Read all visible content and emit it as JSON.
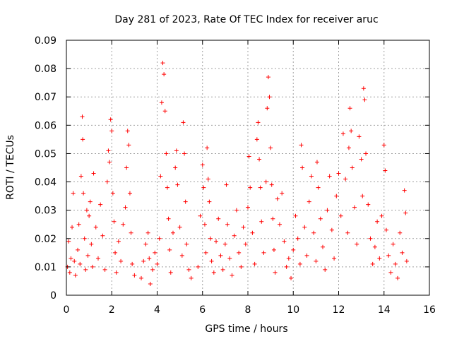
{
  "chart_data": {
    "type": "scatter",
    "title": "Day 281 of 2023, Rate Of TEC Index for receiver aruc",
    "xlabel": "GPS time / hours",
    "ylabel": "ROTI / TECUs",
    "xlim": [
      0,
      16
    ],
    "ylim": [
      0,
      0.09
    ],
    "x_ticks": [
      0,
      2,
      4,
      6,
      8,
      10,
      12,
      14,
      16
    ],
    "y_ticks": [
      0,
      0.01,
      0.02,
      0.03,
      0.04,
      0.05,
      0.06,
      0.07,
      0.08,
      0.09
    ],
    "x_tick_labels": [
      "0",
      "2",
      "4",
      "6",
      "8",
      "10",
      "12",
      "14",
      "16"
    ],
    "y_tick_labels": [
      "0",
      "0.01",
      "0.02",
      "0.03",
      "0.04",
      "0.05",
      "0.06",
      "0.07",
      "0.08",
      "0.09"
    ],
    "grid": true,
    "marker": "+",
    "color": "#ff0000",
    "series": [
      {
        "points": [
          [
            0.05,
            0.01
          ],
          [
            0.1,
            0.019
          ],
          [
            0.15,
            0.008
          ],
          [
            0.2,
            0.013
          ],
          [
            0.25,
            0.024
          ],
          [
            0.3,
            0.036
          ],
          [
            0.35,
            0.012
          ],
          [
            0.4,
            0.007
          ],
          [
            0.5,
            0.016
          ],
          [
            0.55,
            0.025
          ],
          [
            0.6,
            0.011
          ],
          [
            0.65,
            0.042
          ],
          [
            0.7,
            0.063
          ],
          [
            0.72,
            0.055
          ],
          [
            0.75,
            0.036
          ],
          [
            0.8,
            0.02
          ],
          [
            0.85,
            0.009
          ],
          [
            0.9,
            0.03
          ],
          [
            0.95,
            0.014
          ],
          [
            1.0,
            0.028
          ],
          [
            1.05,
            0.033
          ],
          [
            1.1,
            0.018
          ],
          [
            1.15,
            0.01
          ],
          [
            1.2,
            0.043
          ],
          [
            1.3,
            0.024
          ],
          [
            1.4,
            0.013
          ],
          [
            1.5,
            0.032
          ],
          [
            1.6,
            0.021
          ],
          [
            1.7,
            0.009
          ],
          [
            1.8,
            0.04
          ],
          [
            1.85,
            0.051
          ],
          [
            1.9,
            0.047
          ],
          [
            1.95,
            0.062
          ],
          [
            2.0,
            0.058
          ],
          [
            2.05,
            0.036
          ],
          [
            2.1,
            0.026
          ],
          [
            2.15,
            0.015
          ],
          [
            2.2,
            0.008
          ],
          [
            2.3,
            0.019
          ],
          [
            2.4,
            0.012
          ],
          [
            2.5,
            0.025
          ],
          [
            2.6,
            0.031
          ],
          [
            2.65,
            0.045
          ],
          [
            2.7,
            0.058
          ],
          [
            2.75,
            0.053
          ],
          [
            2.8,
            0.036
          ],
          [
            2.85,
            0.022
          ],
          [
            2.9,
            0.011
          ],
          [
            3.0,
            0.007
          ],
          [
            3.3,
            0.006
          ],
          [
            3.4,
            0.012
          ],
          [
            3.5,
            0.018
          ],
          [
            3.6,
            0.022
          ],
          [
            3.65,
            0.013
          ],
          [
            3.7,
            0.004
          ],
          [
            3.8,
            0.009
          ],
          [
            3.9,
            0.015
          ],
          [
            4.0,
            0.011
          ],
          [
            4.1,
            0.02
          ],
          [
            4.15,
            0.042
          ],
          [
            4.2,
            0.068
          ],
          [
            4.25,
            0.082
          ],
          [
            4.3,
            0.078
          ],
          [
            4.35,
            0.065
          ],
          [
            4.4,
            0.05
          ],
          [
            4.45,
            0.038
          ],
          [
            4.5,
            0.027
          ],
          [
            4.55,
            0.016
          ],
          [
            4.6,
            0.008
          ],
          [
            4.7,
            0.022
          ],
          [
            4.8,
            0.045
          ],
          [
            4.85,
            0.051
          ],
          [
            4.9,
            0.039
          ],
          [
            5.0,
            0.024
          ],
          [
            5.1,
            0.014
          ],
          [
            5.15,
            0.061
          ],
          [
            5.2,
            0.05
          ],
          [
            5.25,
            0.033
          ],
          [
            5.3,
            0.018
          ],
          [
            5.4,
            0.009
          ],
          [
            5.5,
            0.006
          ],
          [
            5.8,
            0.01
          ],
          [
            5.9,
            0.028
          ],
          [
            6.0,
            0.046
          ],
          [
            6.05,
            0.038
          ],
          [
            6.1,
            0.025
          ],
          [
            6.15,
            0.015
          ],
          [
            6.2,
            0.052
          ],
          [
            6.25,
            0.041
          ],
          [
            6.3,
            0.033
          ],
          [
            6.35,
            0.02
          ],
          [
            6.4,
            0.012
          ],
          [
            6.5,
            0.008
          ],
          [
            6.6,
            0.019
          ],
          [
            6.7,
            0.027
          ],
          [
            6.8,
            0.014
          ],
          [
            6.9,
            0.009
          ],
          [
            7.0,
            0.018
          ],
          [
            7.05,
            0.039
          ],
          [
            7.1,
            0.025
          ],
          [
            7.2,
            0.013
          ],
          [
            7.3,
            0.007
          ],
          [
            7.4,
            0.021
          ],
          [
            7.5,
            0.03
          ],
          [
            7.6,
            0.015
          ],
          [
            7.7,
            0.01
          ],
          [
            7.8,
            0.024
          ],
          [
            7.9,
            0.018
          ],
          [
            8.0,
            0.031
          ],
          [
            8.05,
            0.049
          ],
          [
            8.1,
            0.038
          ],
          [
            8.2,
            0.022
          ],
          [
            8.3,
            0.011
          ],
          [
            8.4,
            0.055
          ],
          [
            8.45,
            0.061
          ],
          [
            8.5,
            0.048
          ],
          [
            8.55,
            0.038
          ],
          [
            8.6,
            0.026
          ],
          [
            8.7,
            0.015
          ],
          [
            8.8,
            0.04
          ],
          [
            8.85,
            0.066
          ],
          [
            8.9,
            0.077
          ],
          [
            8.95,
            0.07
          ],
          [
            9.0,
            0.052
          ],
          [
            9.05,
            0.039
          ],
          [
            9.1,
            0.027
          ],
          [
            9.15,
            0.016
          ],
          [
            9.2,
            0.008
          ],
          [
            9.3,
            0.034
          ],
          [
            9.4,
            0.025
          ],
          [
            9.5,
            0.036
          ],
          [
            9.6,
            0.019
          ],
          [
            9.7,
            0.01
          ],
          [
            9.8,
            0.013
          ],
          [
            9.9,
            0.006
          ],
          [
            10.0,
            0.016
          ],
          [
            10.1,
            0.028
          ],
          [
            10.2,
            0.02
          ],
          [
            10.3,
            0.011
          ],
          [
            10.35,
            0.053
          ],
          [
            10.4,
            0.045
          ],
          [
            10.5,
            0.024
          ],
          [
            10.6,
            0.014
          ],
          [
            10.7,
            0.033
          ],
          [
            10.8,
            0.042
          ],
          [
            10.9,
            0.022
          ],
          [
            11.0,
            0.012
          ],
          [
            11.05,
            0.047
          ],
          [
            11.1,
            0.038
          ],
          [
            11.2,
            0.027
          ],
          [
            11.3,
            0.017
          ],
          [
            11.4,
            0.009
          ],
          [
            11.5,
            0.03
          ],
          [
            11.6,
            0.042
          ],
          [
            11.7,
            0.023
          ],
          [
            11.8,
            0.013
          ],
          [
            11.9,
            0.035
          ],
          [
            12.0,
            0.043
          ],
          [
            12.1,
            0.028
          ],
          [
            12.2,
            0.057
          ],
          [
            12.3,
            0.041
          ],
          [
            12.4,
            0.022
          ],
          [
            12.45,
            0.052
          ],
          [
            12.5,
            0.066
          ],
          [
            12.55,
            0.058
          ],
          [
            12.6,
            0.045
          ],
          [
            12.7,
            0.031
          ],
          [
            12.8,
            0.018
          ],
          [
            12.9,
            0.056
          ],
          [
            13.0,
            0.048
          ],
          [
            13.05,
            0.035
          ],
          [
            13.1,
            0.073
          ],
          [
            13.15,
            0.069
          ],
          [
            13.2,
            0.05
          ],
          [
            13.3,
            0.032
          ],
          [
            13.4,
            0.02
          ],
          [
            13.5,
            0.011
          ],
          [
            13.6,
            0.017
          ],
          [
            13.7,
            0.026
          ],
          [
            13.8,
            0.013
          ],
          [
            13.9,
            0.028
          ],
          [
            14.0,
            0.053
          ],
          [
            14.05,
            0.044
          ],
          [
            14.1,
            0.023
          ],
          [
            14.2,
            0.014
          ],
          [
            14.3,
            0.008
          ],
          [
            14.4,
            0.018
          ],
          [
            14.5,
            0.011
          ],
          [
            14.6,
            0.006
          ],
          [
            14.7,
            0.022
          ],
          [
            14.8,
            0.015
          ],
          [
            14.9,
            0.037
          ],
          [
            14.95,
            0.029
          ],
          [
            15.0,
            0.012
          ]
        ]
      }
    ]
  }
}
